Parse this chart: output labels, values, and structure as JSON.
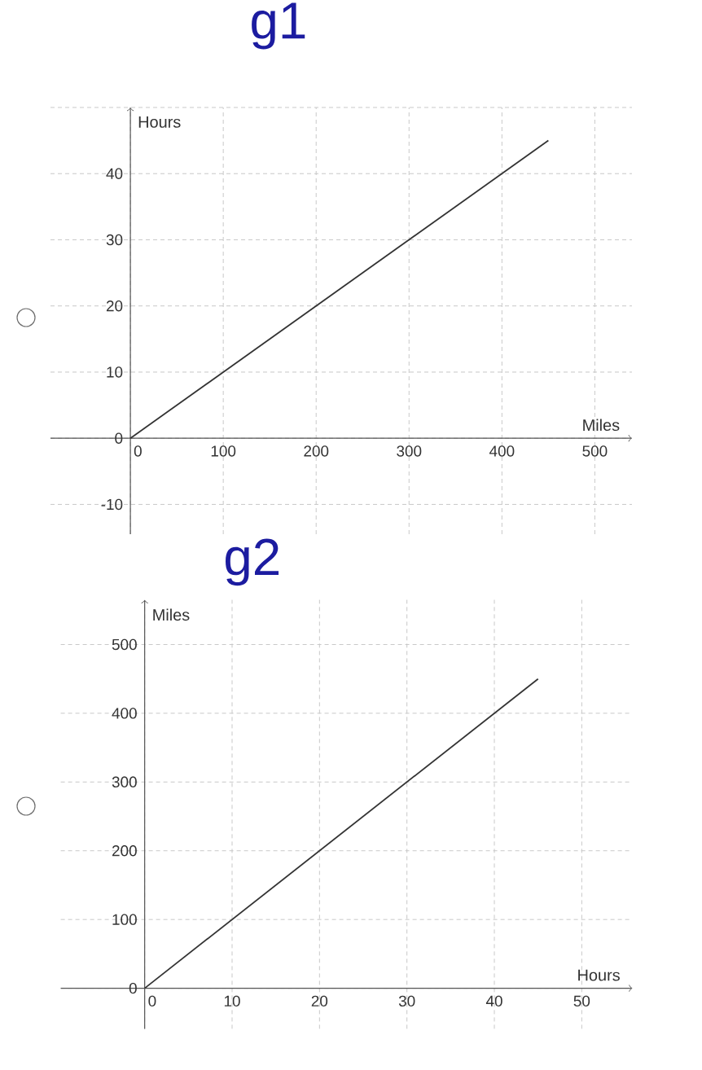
{
  "chart_data": [
    {
      "type": "line",
      "title": "g1",
      "xlabel": "Miles",
      "ylabel": "Hours",
      "x": [
        0,
        450
      ],
      "values": [
        0,
        45
      ],
      "color": "#333333",
      "line_style": "solid",
      "xlim": [
        -86,
        540
      ],
      "ylim": [
        -14.5,
        50
      ],
      "xticks": [
        0,
        100,
        200,
        300,
        400,
        500
      ],
      "yticks": [
        -10,
        0,
        10,
        20,
        30,
        40,
        {
          "value": 50,
          "label": null
        }
      ],
      "grid": true,
      "legend": false
    },
    {
      "type": "line",
      "title": "g2",
      "xlabel": "Hours",
      "ylabel": "Miles",
      "x": [
        0,
        45
      ],
      "values": [
        0,
        450
      ],
      "color": "#333333",
      "line_style": "solid",
      "xlim": [
        -9.6,
        55.8
      ],
      "ylim": [
        -59,
        565
      ],
      "xticks": [
        0,
        10,
        20,
        30,
        40,
        50
      ],
      "yticks": [
        0,
        100,
        200,
        300,
        400,
        500
      ],
      "grid": true,
      "legend": false
    }
  ]
}
